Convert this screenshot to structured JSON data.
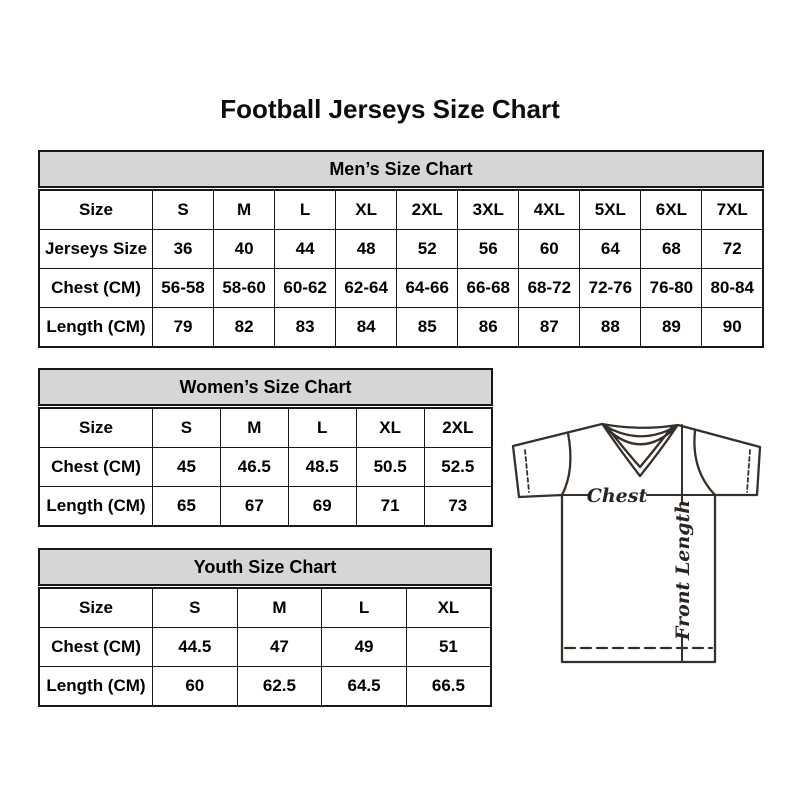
{
  "page": {
    "title": "Football Jerseys Size Chart"
  },
  "colors": {
    "background": "#ffffff",
    "table_header_bg": "#d6d6d6",
    "table_border": "#181818",
    "text": "#000000",
    "jersey_outline": "#37302a"
  },
  "tables": [
    {
      "id": "mens",
      "title": "Men’s Size Chart",
      "rows": [
        [
          "Size",
          "S",
          "M",
          "L",
          "XL",
          "2XL",
          "3XL",
          "4XL",
          "5XL",
          "6XL",
          "7XL"
        ],
        [
          "Jerseys Size",
          "36",
          "40",
          "44",
          "48",
          "52",
          "56",
          "60",
          "64",
          "68",
          "72"
        ],
        [
          "Chest (CM)",
          "56-58",
          "58-60",
          "60-62",
          "62-64",
          "64-66",
          "66-68",
          "68-72",
          "72-76",
          "76-80",
          "80-84"
        ],
        [
          "Length (CM)",
          "79",
          "82",
          "83",
          "84",
          "85",
          "86",
          "87",
          "88",
          "89",
          "90"
        ]
      ]
    },
    {
      "id": "womens",
      "title": "Women’s Size Chart",
      "rows": [
        [
          "Size",
          "S",
          "M",
          "L",
          "XL",
          "2XL"
        ],
        [
          "Chest (CM)",
          "45",
          "46.5",
          "48.5",
          "50.5",
          "52.5"
        ],
        [
          "Length (CM)",
          "65",
          "67",
          "69",
          "71",
          "73"
        ]
      ]
    },
    {
      "id": "youth",
      "title": "Youth Size Chart",
      "rows": [
        [
          "Size",
          "S",
          "M",
          "L",
          "XL"
        ],
        [
          "Chest (CM)",
          "44.5",
          "47",
          "49",
          "51"
        ],
        [
          "Length (CM)",
          "60",
          "62.5",
          "64.5",
          "66.5"
        ]
      ]
    }
  ],
  "diagram": {
    "chest_label": "Chest",
    "front_length_label": "Front Length"
  }
}
